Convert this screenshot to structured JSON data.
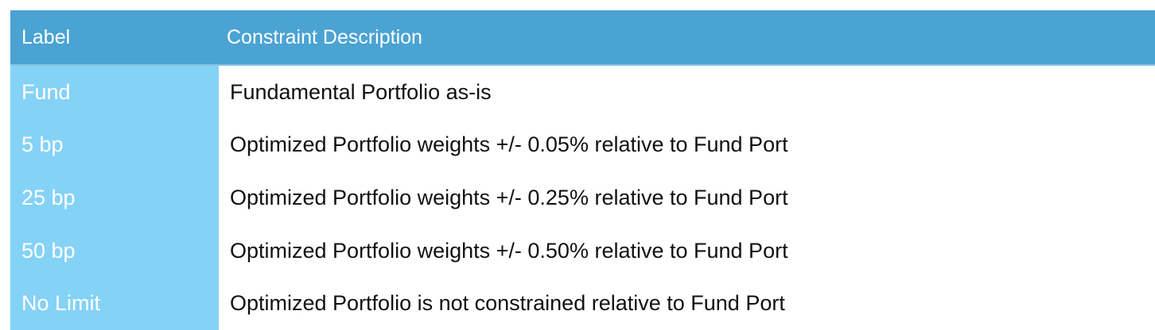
{
  "table": {
    "header": [
      "Label",
      "Constraint Description"
    ],
    "rows": [
      [
        "Fund",
        "Fundamental Portfolio as-is"
      ],
      [
        "5 bp",
        "Optimized Portfolio weights +/- 0.05% relative to Fund Port"
      ],
      [
        "25 bp",
        "Optimized Portfolio weights +/- 0.25% relative to Fund Port"
      ],
      [
        "50 bp",
        "Optimized Portfolio weights +/- 0.50% relative to Fund Port"
      ],
      [
        "No Limit",
        "Optimized Portfolio is not constrained relative to Fund Port"
      ]
    ]
  }
}
